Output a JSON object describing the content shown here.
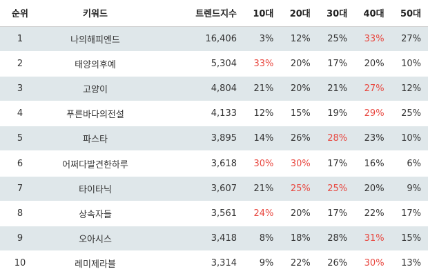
{
  "headers": {
    "rank": "순위",
    "keyword": "키워드",
    "trend": "트렌드지수",
    "age10": "10대",
    "age20": "20대",
    "age30": "30대",
    "age40": "40대",
    "age50": "50대"
  },
  "highlight_color": "#e8473f",
  "stripe_color": "#dfe7ea",
  "rows": [
    {
      "rank": "1",
      "keyword": "나의해피엔드",
      "trend": "16,406",
      "age10": "3%",
      "age20": "12%",
      "age30": "25%",
      "age40": "33%",
      "age50": "27%",
      "highlight": [
        "age40"
      ]
    },
    {
      "rank": "2",
      "keyword": "태양의후예",
      "trend": "5,304",
      "age10": "33%",
      "age20": "20%",
      "age30": "17%",
      "age40": "20%",
      "age50": "10%",
      "highlight": [
        "age10"
      ]
    },
    {
      "rank": "3",
      "keyword": "고양이",
      "trend": "4,804",
      "age10": "21%",
      "age20": "20%",
      "age30": "21%",
      "age40": "27%",
      "age50": "12%",
      "highlight": [
        "age40"
      ]
    },
    {
      "rank": "4",
      "keyword": "푸른바다의전설",
      "trend": "4,133",
      "age10": "12%",
      "age20": "15%",
      "age30": "19%",
      "age40": "29%",
      "age50": "25%",
      "highlight": [
        "age40"
      ]
    },
    {
      "rank": "5",
      "keyword": "파스타",
      "trend": "3,895",
      "age10": "14%",
      "age20": "26%",
      "age30": "28%",
      "age40": "23%",
      "age50": "10%",
      "highlight": [
        "age30"
      ]
    },
    {
      "rank": "6",
      "keyword": "어쩌다발견한하루",
      "trend": "3,618",
      "age10": "30%",
      "age20": "30%",
      "age30": "17%",
      "age40": "16%",
      "age50": "6%",
      "highlight": [
        "age10",
        "age20"
      ]
    },
    {
      "rank": "7",
      "keyword": "타이타닉",
      "trend": "3,607",
      "age10": "21%",
      "age20": "25%",
      "age30": "25%",
      "age40": "20%",
      "age50": "9%",
      "highlight": [
        "age20",
        "age30"
      ]
    },
    {
      "rank": "8",
      "keyword": "상속자들",
      "trend": "3,561",
      "age10": "24%",
      "age20": "20%",
      "age30": "17%",
      "age40": "22%",
      "age50": "17%",
      "highlight": [
        "age10"
      ]
    },
    {
      "rank": "9",
      "keyword": "오아시스",
      "trend": "3,418",
      "age10": "8%",
      "age20": "18%",
      "age30": "28%",
      "age40": "31%",
      "age50": "15%",
      "highlight": [
        "age40"
      ]
    },
    {
      "rank": "10",
      "keyword": "레미제라블",
      "trend": "3,314",
      "age10": "9%",
      "age20": "22%",
      "age30": "26%",
      "age40": "30%",
      "age50": "13%",
      "highlight": [
        "age40"
      ]
    }
  ]
}
